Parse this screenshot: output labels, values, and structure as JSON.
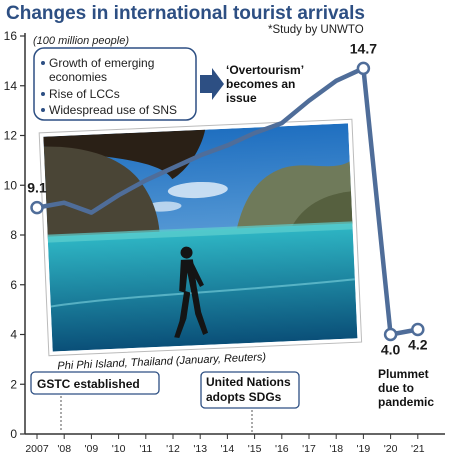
{
  "title": "Changes in international tourist arrivals",
  "source": "*Study by UNWTO",
  "colors": {
    "title": "#2d4f83",
    "line": "#4f6d99",
    "accent": "#2d4f83"
  },
  "factors": [
    "Growth of emerging",
    "economies",
    "Rise of LCCs",
    "Widespread use of SNS"
  ],
  "overtourism": [
    "‘Overtourism’",
    "becomes an",
    "issue"
  ],
  "photo_caption": "Phi Phi Island, Thailand (January, Reuters)",
  "events": {
    "gstc": "GSTC established",
    "un": [
      "United Nations",
      "adopts SDGs"
    ],
    "plummet": [
      "Plummet",
      "due to",
      "pandemic"
    ]
  },
  "chart_data": {
    "type": "line",
    "title": "Changes in international tourist arrivals",
    "ylabel": "(100 million people)",
    "ylim": [
      0,
      16
    ],
    "yticks": [
      0,
      2,
      4,
      6,
      8,
      10,
      12,
      14,
      16
    ],
    "grid": false,
    "x_labels": [
      "2007",
      "'08",
      "'09",
      "'10",
      "'11",
      "'12",
      "'13",
      "'14",
      "'15",
      "'16",
      "'17",
      "'18",
      "'19",
      "'20",
      "'21"
    ],
    "values": [
      9.1,
      9.3,
      8.9,
      9.6,
      10.2,
      10.7,
      11.2,
      11.6,
      12.1,
      12.5,
      13.4,
      14.2,
      14.7,
      4.0,
      4.2
    ],
    "value_labels": [
      {
        "index": 0,
        "text": "9.1"
      },
      {
        "index": 12,
        "text": "14.7"
      },
      {
        "index": 13,
        "text": "4.0"
      },
      {
        "index": 14,
        "text": "4.2"
      }
    ]
  }
}
